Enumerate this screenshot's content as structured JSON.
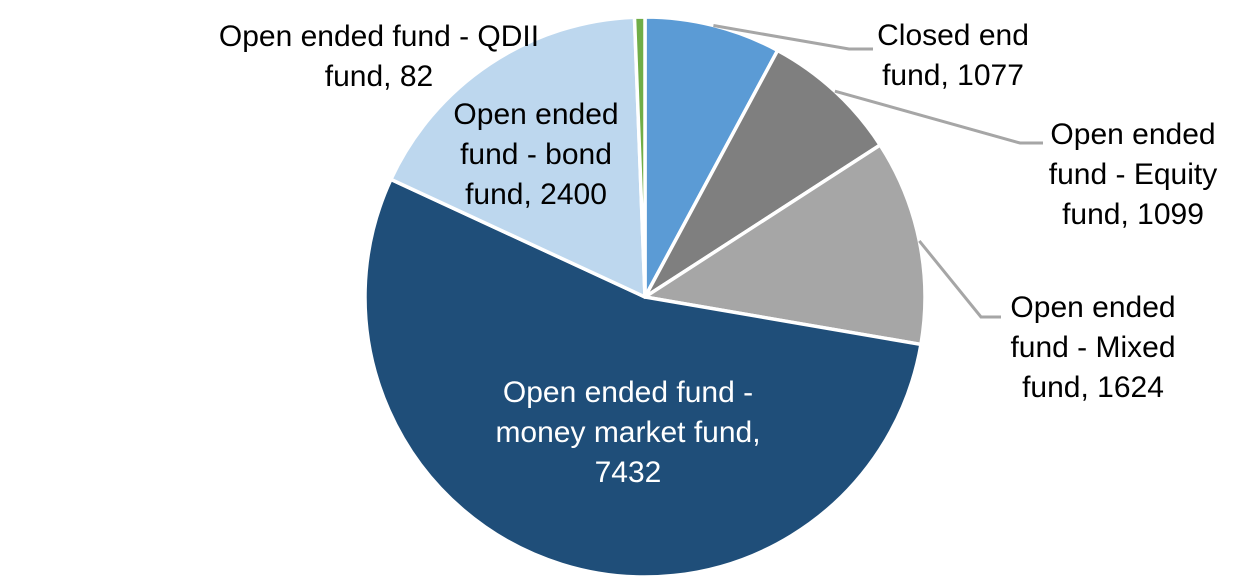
{
  "chart_data": {
    "type": "pie",
    "title": "",
    "legend_position": "none",
    "grid": false,
    "background": "#FFFFFF",
    "slice_border_color": "#FFFFFF",
    "leader_line_color": "#A6A6A6",
    "start_angle_deg": 0,
    "direction": "clockwise",
    "slices": [
      {
        "name": "Closed end fund",
        "value": 1077,
        "color": "#5B9BD5",
        "label_lines": [
          "Closed end",
          "fund, 1077"
        ],
        "label_position": "outside",
        "label_color": "#000000",
        "leader_line": true
      },
      {
        "name": "Open ended fund - Equity fund",
        "value": 1099,
        "color": "#7F7F7F",
        "label_lines": [
          "Open ended",
          "fund - Equity",
          "fund, 1099"
        ],
        "label_position": "outside",
        "label_color": "#000000",
        "leader_line": true
      },
      {
        "name": "Open ended fund - Mixed fund",
        "value": 1624,
        "color": "#A6A6A6",
        "label_lines": [
          "Open ended",
          "fund - Mixed",
          "fund, 1624"
        ],
        "label_position": "outside",
        "label_color": "#000000",
        "leader_line": true
      },
      {
        "name": "Open ended fund - money market fund",
        "value": 7432,
        "color": "#1F4E79",
        "label_lines": [
          "Open ended fund -",
          "money market fund,",
          "7432"
        ],
        "label_position": "inside",
        "label_color": "#FFFFFF",
        "leader_line": false
      },
      {
        "name": "Open ended fund - bond fund",
        "value": 2400,
        "color": "#BDD7EE",
        "label_lines": [
          "Open ended",
          "fund - bond",
          "fund, 2400"
        ],
        "label_position": "inside",
        "label_color": "#000000",
        "leader_line": false
      },
      {
        "name": "Open ended fund - QDII fund",
        "value": 82,
        "color": "#70AD47",
        "label_lines": [
          "Open ended fund - QDII",
          "fund, 82"
        ],
        "label_position": "outside",
        "label_color": "#000000",
        "leader_line": false
      }
    ]
  }
}
